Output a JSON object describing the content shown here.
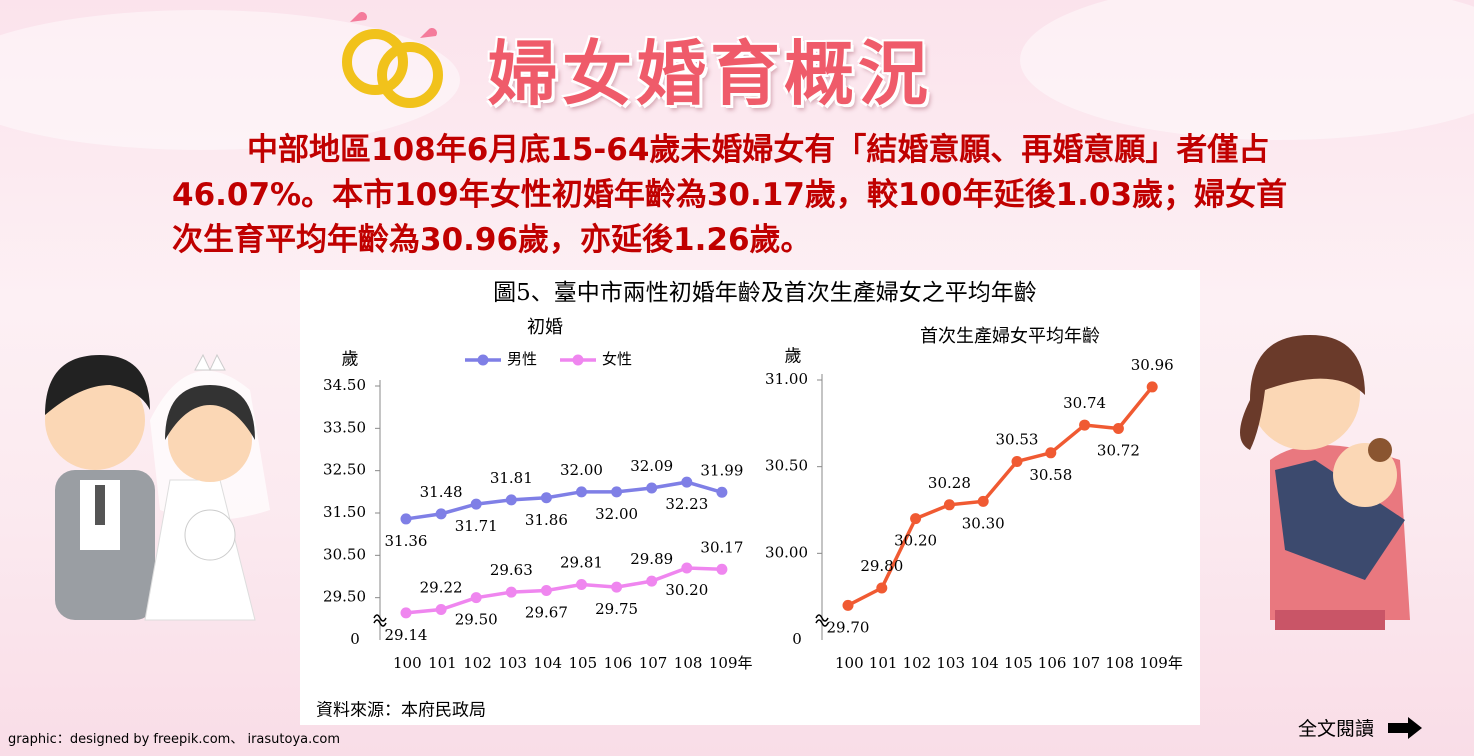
{
  "header": {
    "title": "婦女婚育概況"
  },
  "summary": "中部地區108年6月底15-64歲未婚婦女有「結婚意願、再婚意願」者僅占46.07%。本市109年女性初婚年齡為30.17歲，較100年延後1.03歲；婦女首次生育平均年齡為30.96歲，亦延後1.26歲。",
  "figure": {
    "title": "圖5、臺中市兩性初婚年齡及首次生產婦女之平均年齡",
    "source": "資料來源：本府民政局"
  },
  "chart_data": [
    {
      "type": "line",
      "title": "初婚",
      "y_label": "歲",
      "ybreak_label": "0",
      "categories": [
        "100",
        "101",
        "102",
        "103",
        "104",
        "105",
        "106",
        "107",
        "108",
        "109年"
      ],
      "series": [
        {
          "name": "男性",
          "color": "#7f7fe6",
          "values": [
            31.36,
            31.48,
            31.71,
            31.81,
            31.86,
            32.0,
            32.0,
            32.09,
            32.23,
            31.99
          ],
          "value_labels": [
            "31.36",
            "31.48",
            "31.71",
            "31.81",
            "31.86",
            "32.00",
            "32.00",
            "32.09",
            "32.23",
            "31.99"
          ]
        },
        {
          "name": "女性",
          "color": "#ef86ef",
          "values": [
            29.14,
            29.22,
            29.5,
            29.63,
            29.67,
            29.81,
            29.75,
            29.89,
            30.2,
            30.17
          ],
          "value_labels": [
            "29.14",
            "29.22",
            "29.50",
            "29.63",
            "29.67",
            "29.81",
            "29.75",
            "29.89",
            "30.20",
            "30.17"
          ]
        }
      ],
      "ylim": [
        28.5,
        34.5
      ],
      "yticks": [
        {
          "value": 29.5,
          "label": "29.50"
        },
        {
          "value": 30.5,
          "label": "30.50"
        },
        {
          "value": 31.5,
          "label": "31.50"
        },
        {
          "value": 32.5,
          "label": "32.50"
        },
        {
          "value": 33.5,
          "label": "33.50"
        },
        {
          "value": 34.5,
          "label": "34.50"
        }
      ],
      "legend": "top"
    },
    {
      "type": "line",
      "title": "首次生產婦女平均年齡",
      "y_label": "歲",
      "ybreak_label": "0",
      "categories": [
        "100",
        "101",
        "102",
        "103",
        "104",
        "105",
        "106",
        "107",
        "108",
        "109年"
      ],
      "series": [
        {
          "color": "#f05a32",
          "values": [
            29.7,
            29.8,
            30.2,
            30.28,
            30.3,
            30.53,
            30.58,
            30.74,
            30.72,
            30.96
          ],
          "value_labels": [
            "29.70",
            "29.80",
            "30.20",
            "30.28",
            "30.30",
            "30.53",
            "30.58",
            "30.74",
            "30.72",
            "30.96"
          ]
        }
      ],
      "ylim": [
        29.5,
        31.0
      ],
      "yticks": [
        {
          "value": 30.0,
          "label": "30.00"
        },
        {
          "value": 30.5,
          "label": "30.50"
        },
        {
          "value": 31.0,
          "label": "31.00"
        }
      ]
    }
  ],
  "credit": "graphic：designed by freepik.com、 irasutoya.com",
  "read_more": "全文閱讀"
}
